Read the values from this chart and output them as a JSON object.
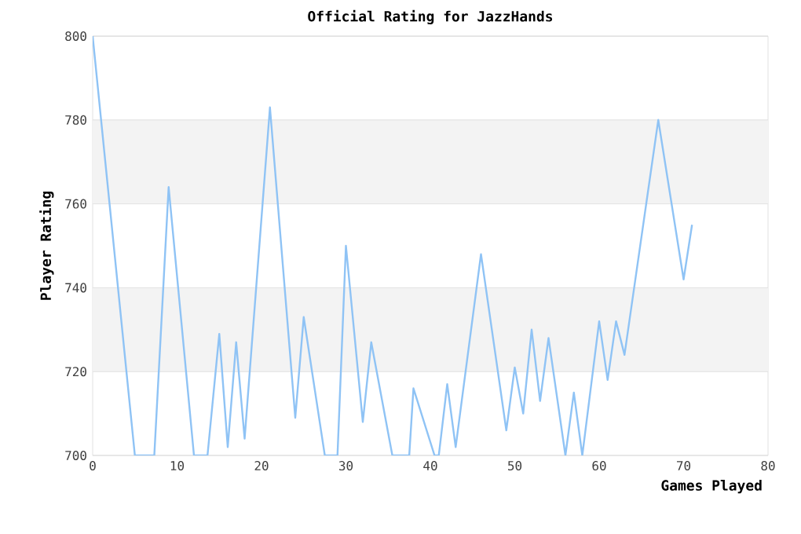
{
  "chart_data": {
    "type": "line",
    "title": "Official Rating for JazzHands",
    "xlabel": "Games Played",
    "ylabel": "Player Rating",
    "x": [
      0,
      5,
      7.3,
      9,
      12,
      13.6,
      15,
      16,
      17,
      18,
      21,
      24,
      25,
      27.5,
      29,
      30,
      32,
      33,
      35.5,
      37.5,
      38,
      40.5,
      41,
      42,
      43,
      46,
      49,
      50,
      51,
      52,
      53,
      54,
      56,
      57,
      58,
      60,
      61,
      62,
      63,
      67,
      70,
      71
    ],
    "series": [
      {
        "color": "#8fc3f5",
        "values": [
          800,
          700,
          700,
          764,
          700,
          700,
          729,
          702,
          727,
          704,
          783,
          709,
          733,
          700,
          700,
          750,
          708,
          727,
          700,
          700,
          716,
          700,
          700,
          717,
          702,
          748,
          706,
          721,
          710,
          730,
          713,
          728,
          700,
          715,
          700,
          732,
          718,
          732,
          724,
          780,
          742,
          755
        ]
      }
    ],
    "xlim": [
      0,
      80
    ],
    "ylim": [
      700,
      800
    ],
    "xticks": [
      0,
      10,
      20,
      30,
      40,
      50,
      60,
      70,
      80
    ],
    "yticks": [
      700,
      720,
      740,
      760,
      780,
      800
    ],
    "grid": "y",
    "bands": [
      {
        "axis": "y",
        "from": 720,
        "to": 740,
        "color": "#f3f3f3"
      },
      {
        "axis": "y",
        "from": 760,
        "to": 780,
        "color": "#f3f3f3"
      }
    ],
    "marker": "none",
    "line_style": "solid"
  }
}
